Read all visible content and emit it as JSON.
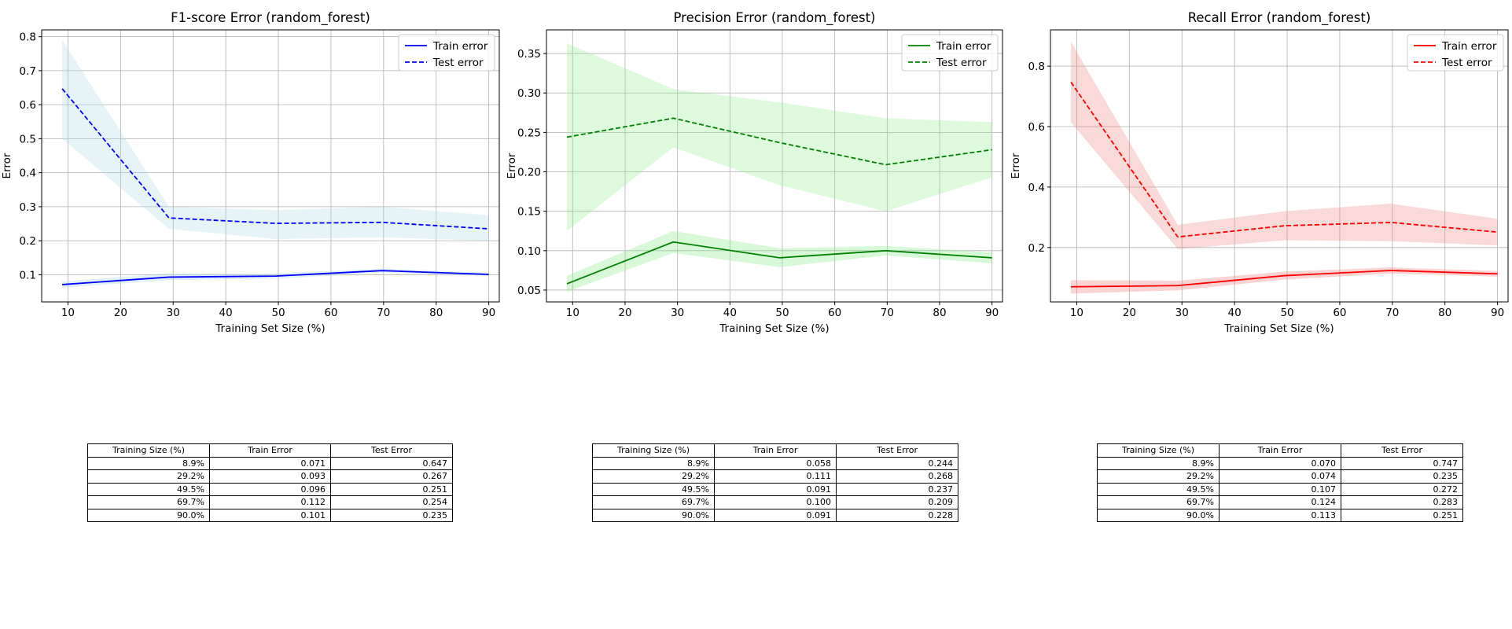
{
  "chart_data": [
    {
      "type": "line",
      "title": "F1-score Error (random_forest)",
      "xlabel": "Training Set Size (%)",
      "ylabel": "Error",
      "xlim": [
        5,
        92
      ],
      "ylim": [
        0.02,
        0.82
      ],
      "xticks": [
        10,
        20,
        30,
        40,
        50,
        60,
        70,
        80,
        90
      ],
      "yticks": [
        0.1,
        0.2,
        0.3,
        0.4,
        0.5,
        0.6,
        0.7,
        0.8
      ],
      "grid": true,
      "legend": "top-right",
      "color": "#0000ff",
      "band_color": "#add8e6",
      "x": [
        8.9,
        29.2,
        49.5,
        69.7,
        90.0
      ],
      "series": [
        {
          "name": "Train error",
          "style": "solid",
          "values": [
            0.071,
            0.093,
            0.096,
            0.112,
            0.101
          ],
          "upper": [
            0.08,
            0.104,
            0.104,
            0.118,
            0.106
          ],
          "lower": [
            0.062,
            0.084,
            0.088,
            0.106,
            0.096
          ]
        },
        {
          "name": "Test error",
          "style": "dashed",
          "values": [
            0.647,
            0.267,
            0.251,
            0.254,
            0.235
          ],
          "upper": [
            0.79,
            0.3,
            0.29,
            0.3,
            0.275
          ],
          "lower": [
            0.5,
            0.235,
            0.205,
            0.21,
            0.2
          ]
        }
      ],
      "table": {
        "columns": [
          "Training Size (%)",
          "Train Error",
          "Test Error"
        ],
        "rows": [
          [
            "8.9%",
            "0.071",
            "0.647"
          ],
          [
            "29.2%",
            "0.093",
            "0.267"
          ],
          [
            "49.5%",
            "0.096",
            "0.251"
          ],
          [
            "69.7%",
            "0.112",
            "0.254"
          ],
          [
            "90.0%",
            "0.101",
            "0.235"
          ]
        ]
      }
    },
    {
      "type": "line",
      "title": "Precision Error (random_forest)",
      "xlabel": "Training Set Size (%)",
      "ylabel": "Error",
      "xlim": [
        5,
        92
      ],
      "ylim": [
        0.035,
        0.38
      ],
      "xticks": [
        10,
        20,
        30,
        40,
        50,
        60,
        70,
        80,
        90
      ],
      "yticks": [
        0.05,
        0.1,
        0.15,
        0.2,
        0.25,
        0.3,
        0.35
      ],
      "grid": true,
      "legend": "top-right",
      "color": "#008000",
      "band_color": "#90ee90",
      "x": [
        8.9,
        29.2,
        49.5,
        69.7,
        90.0
      ],
      "series": [
        {
          "name": "Train error",
          "style": "solid",
          "values": [
            0.058,
            0.111,
            0.091,
            0.1,
            0.091
          ],
          "upper": [
            0.068,
            0.125,
            0.103,
            0.106,
            0.098
          ],
          "lower": [
            0.048,
            0.097,
            0.079,
            0.094,
            0.084
          ]
        },
        {
          "name": "Test error",
          "style": "dashed",
          "values": [
            0.244,
            0.268,
            0.237,
            0.209,
            0.228
          ],
          "upper": [
            0.363,
            0.305,
            0.288,
            0.268,
            0.263
          ],
          "lower": [
            0.125,
            0.231,
            0.183,
            0.15,
            0.193
          ]
        }
      ],
      "table": {
        "columns": [
          "Training Size (%)",
          "Train Error",
          "Test Error"
        ],
        "rows": [
          [
            "8.9%",
            "0.058",
            "0.244"
          ],
          [
            "29.2%",
            "0.111",
            "0.268"
          ],
          [
            "49.5%",
            "0.091",
            "0.237"
          ],
          [
            "69.7%",
            "0.100",
            "0.209"
          ],
          [
            "90.0%",
            "0.091",
            "0.228"
          ]
        ]
      }
    },
    {
      "type": "line",
      "title": "Recall Error (random_forest)",
      "xlabel": "Training Set Size (%)",
      "ylabel": "Error",
      "xlim": [
        5,
        92
      ],
      "ylim": [
        0.02,
        0.92
      ],
      "xticks": [
        10,
        20,
        30,
        40,
        50,
        60,
        70,
        80,
        90
      ],
      "yticks": [
        0.2,
        0.4,
        0.6,
        0.8
      ],
      "grid": true,
      "legend": "top-right",
      "color": "#ff0000",
      "band_color": "#f08080",
      "x": [
        8.9,
        29.2,
        49.5,
        69.7,
        90.0
      ],
      "series": [
        {
          "name": "Train error",
          "style": "solid",
          "values": [
            0.07,
            0.074,
            0.107,
            0.124,
            0.113
          ],
          "upper": [
            0.092,
            0.09,
            0.12,
            0.134,
            0.122
          ],
          "lower": [
            0.048,
            0.058,
            0.094,
            0.114,
            0.104
          ]
        },
        {
          "name": "Test error",
          "style": "dashed",
          "values": [
            0.747,
            0.235,
            0.272,
            0.283,
            0.251
          ],
          "upper": [
            0.88,
            0.275,
            0.32,
            0.345,
            0.295
          ],
          "lower": [
            0.614,
            0.195,
            0.224,
            0.221,
            0.207
          ]
        }
      ],
      "table": {
        "columns": [
          "Training Size (%)",
          "Train Error",
          "Test Error"
        ],
        "rows": [
          [
            "8.9%",
            "0.070",
            "0.747"
          ],
          [
            "29.2%",
            "0.074",
            "0.235"
          ],
          [
            "49.5%",
            "0.107",
            "0.272"
          ],
          [
            "69.7%",
            "0.124",
            "0.283"
          ],
          [
            "90.0%",
            "0.113",
            "0.251"
          ]
        ]
      }
    }
  ]
}
